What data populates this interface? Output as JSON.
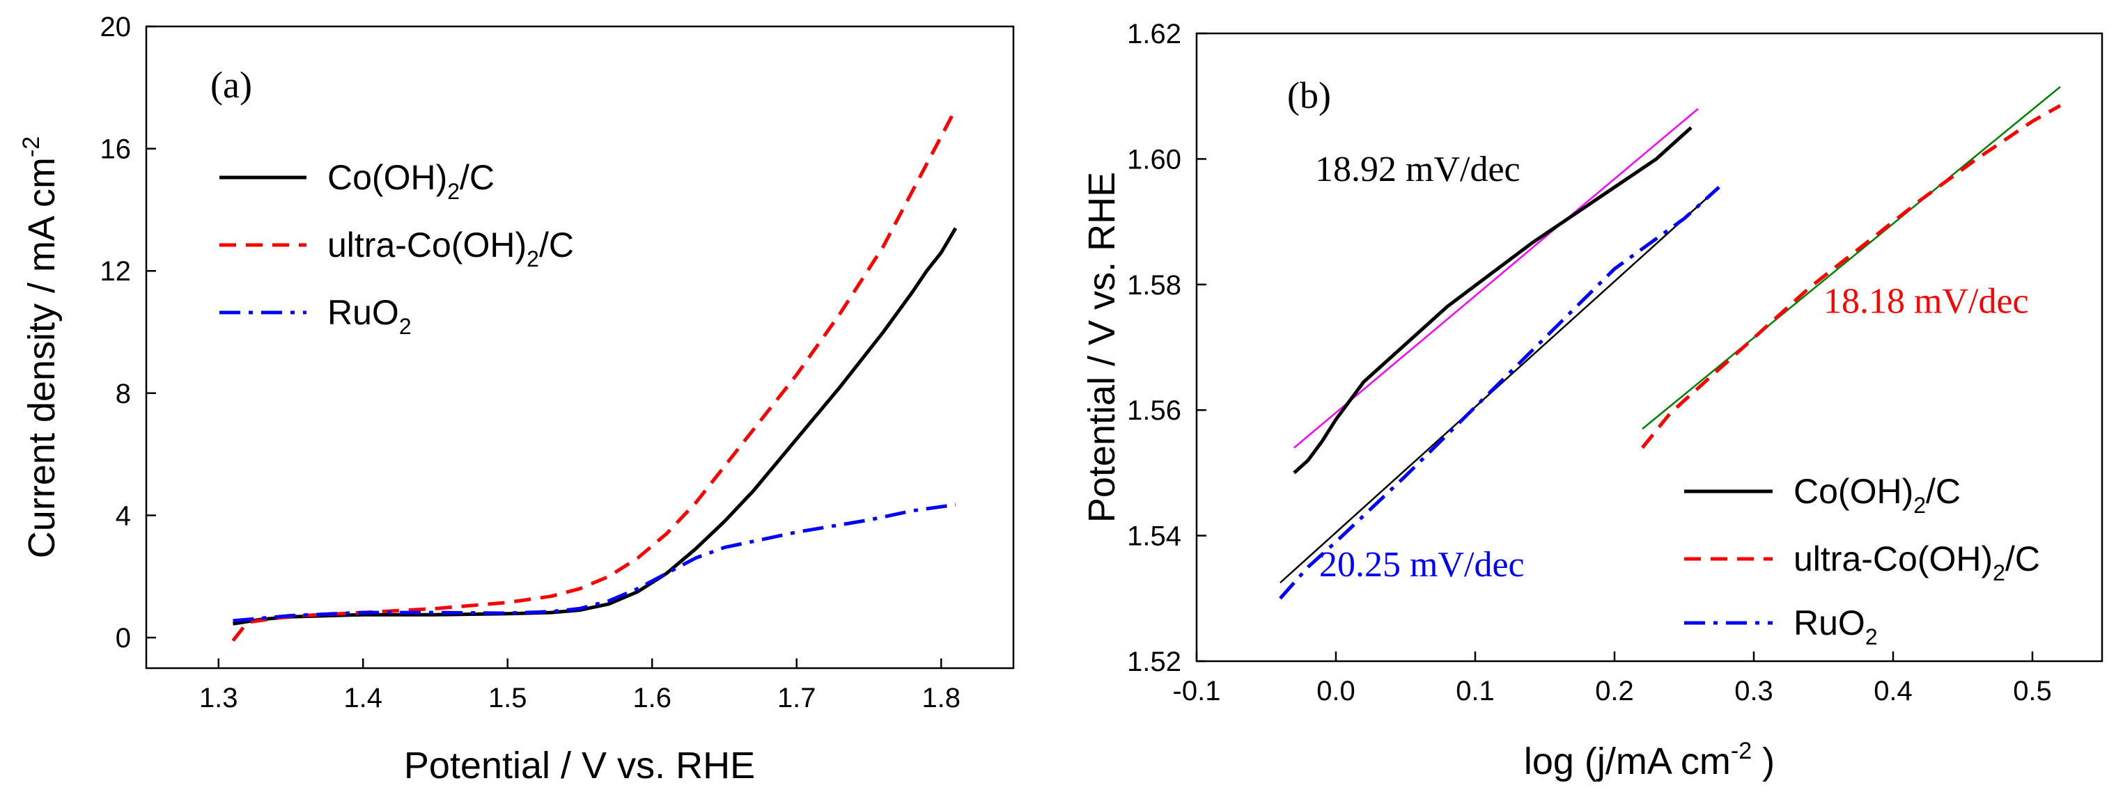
{
  "chart_data": [
    {
      "type": "line",
      "panel_label": "(a)",
      "xlabel": "Potential / V vs. RHE",
      "ylabel_main": "Current density / mA cm",
      "ylabel_sup": "-2",
      "xlim": [
        1.25,
        1.85
      ],
      "ylim": [
        -1,
        20
      ],
      "xticks": [
        1.3,
        1.4,
        1.5,
        1.6,
        1.7,
        1.8
      ],
      "xtick_labels": [
        "1.3",
        "1.4",
        "1.5",
        "1.6",
        "1.7",
        "1.8"
      ],
      "yticks": [
        0,
        4,
        8,
        12,
        16,
        20
      ],
      "ytick_labels": [
        "0",
        "4",
        "8",
        "12",
        "16",
        "20"
      ],
      "legend_position": "upper-left",
      "series": [
        {
          "name": "Co(OH)2/C",
          "label_main": "Co(OH)",
          "label_sub": "2",
          "label_tail": "/C",
          "color": "#000000",
          "style": "solid",
          "x": [
            1.31,
            1.33,
            1.35,
            1.4,
            1.45,
            1.5,
            1.53,
            1.55,
            1.57,
            1.59,
            1.61,
            1.63,
            1.65,
            1.67,
            1.7,
            1.73,
            1.76,
            1.78,
            1.79,
            1.8,
            1.81
          ],
          "y": [
            0.45,
            0.6,
            0.68,
            0.75,
            0.75,
            0.78,
            0.82,
            0.9,
            1.1,
            1.5,
            2.1,
            2.9,
            3.8,
            4.8,
            6.5,
            8.2,
            10.0,
            11.3,
            12.0,
            12.6,
            13.4
          ]
        },
        {
          "name": "ultra-Co(OH)2/C",
          "label_main": "ultra-Co(OH)",
          "label_sub": "2",
          "label_tail": "/C",
          "color": "#ff0000",
          "style": "dashed",
          "x": [
            1.31,
            1.32,
            1.35,
            1.4,
            1.45,
            1.5,
            1.53,
            1.55,
            1.57,
            1.59,
            1.61,
            1.63,
            1.65,
            1.67,
            1.7,
            1.73,
            1.76,
            1.78,
            1.8,
            1.81
          ],
          "y": [
            -0.1,
            0.5,
            0.7,
            0.82,
            0.95,
            1.15,
            1.35,
            1.6,
            2.0,
            2.6,
            3.4,
            4.4,
            5.6,
            6.8,
            8.6,
            10.6,
            12.8,
            14.6,
            16.4,
            17.3
          ]
        },
        {
          "name": "RuO2",
          "label_main": "RuO",
          "label_sub": "2",
          "label_tail": "",
          "color": "#0000ff",
          "style": "dashdot",
          "x": [
            1.31,
            1.35,
            1.4,
            1.45,
            1.5,
            1.53,
            1.55,
            1.57,
            1.59,
            1.61,
            1.63,
            1.65,
            1.7,
            1.75,
            1.78,
            1.81
          ],
          "y": [
            0.55,
            0.72,
            0.82,
            0.82,
            0.8,
            0.85,
            0.95,
            1.2,
            1.6,
            2.1,
            2.6,
            2.95,
            3.45,
            3.85,
            4.15,
            4.35
          ]
        }
      ]
    },
    {
      "type": "line",
      "panel_label": "(b)",
      "xlabel_main": "log (j/mA cm",
      "xlabel_sup": "-2",
      "xlabel_tail": " )",
      "ylabel": "Potential / V vs. RHE",
      "xlim": [
        -0.1,
        0.55
      ],
      "ylim": [
        1.52,
        1.62
      ],
      "xticks": [
        -0.1,
        0.0,
        0.1,
        0.2,
        0.3,
        0.4,
        0.5
      ],
      "xtick_labels": [
        "-0.1",
        "0.0",
        "0.1",
        "0.2",
        "0.3",
        "0.4",
        "0.5"
      ],
      "yticks": [
        1.52,
        1.54,
        1.56,
        1.58,
        1.6,
        1.62
      ],
      "ytick_labels": [
        "1.52",
        "1.54",
        "1.56",
        "1.58",
        "1.60",
        "1.62"
      ],
      "legend_position": "lower-right",
      "annotations": [
        {
          "text": "18.92 mV/dec",
          "x": -0.015,
          "y": 1.5965,
          "color": "#000000"
        },
        {
          "text": "18.18 mV/dec",
          "x": 0.35,
          "y": 1.5755,
          "color": "#ff0000"
        },
        {
          "text": "20.25 mV/dec",
          "x": -0.012,
          "y": 1.5335,
          "color": "#0000ff"
        }
      ],
      "series": [
        {
          "name": "Co(OH)2/C",
          "label_main": "Co(OH)",
          "label_sub": "2",
          "label_tail": "/C",
          "color": "#000000",
          "style": "solid",
          "x": [
            -0.03,
            -0.02,
            -0.01,
            0.0,
            0.02,
            0.05,
            0.08,
            0.11,
            0.14,
            0.17,
            0.2,
            0.23,
            0.255
          ],
          "y": [
            1.55,
            1.552,
            1.555,
            1.5585,
            1.5645,
            1.5705,
            1.5765,
            1.5815,
            1.5865,
            1.591,
            1.5955,
            1.6,
            1.605
          ]
        },
        {
          "name": "ultra-Co(OH)2/C",
          "label_main": "ultra-Co(OH)",
          "label_sub": "2",
          "label_tail": "/C",
          "color": "#ff0000",
          "style": "dashed",
          "x": [
            0.22,
            0.24,
            0.26,
            0.3,
            0.34,
            0.38,
            0.42,
            0.46,
            0.5,
            0.52
          ],
          "y": [
            1.554,
            1.5595,
            1.5635,
            1.5715,
            1.5795,
            1.5865,
            1.5935,
            1.6,
            1.606,
            1.6085
          ]
        },
        {
          "name": "RuO2",
          "label_main": "RuO",
          "label_sub": "2",
          "label_tail": "",
          "color": "#0000ff",
          "style": "dashdot",
          "x": [
            -0.04,
            -0.02,
            0.0,
            0.05,
            0.1,
            0.15,
            0.2,
            0.25,
            0.275
          ],
          "y": [
            1.53,
            1.535,
            1.539,
            1.5495,
            1.5605,
            1.5715,
            1.5825,
            1.5905,
            1.5955
          ]
        }
      ],
      "fit_lines": [
        {
          "color": "#ff00ff",
          "x": [
            -0.03,
            0.26
          ],
          "y": [
            1.554,
            1.608
          ]
        },
        {
          "color": "#000000",
          "x": [
            -0.04,
            0.275
          ],
          "y": [
            1.5325,
            1.5955
          ]
        },
        {
          "color": "#008000",
          "x": [
            0.22,
            0.52
          ],
          "y": [
            1.557,
            1.6115
          ]
        }
      ]
    }
  ]
}
